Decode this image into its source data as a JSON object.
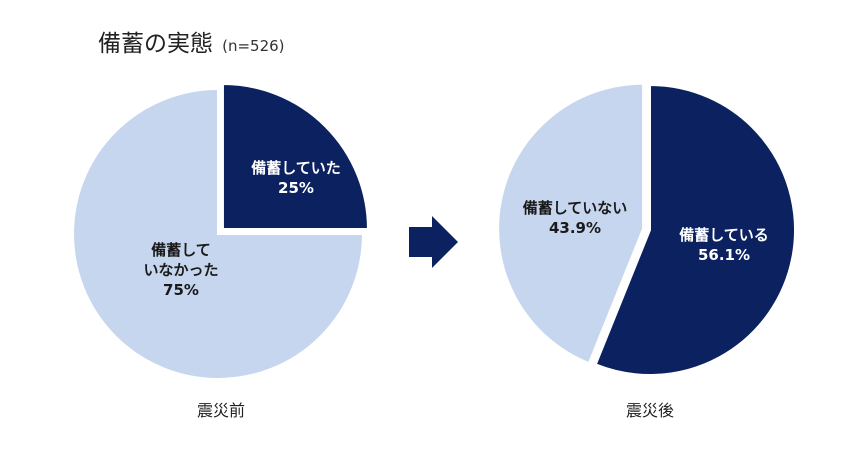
{
  "title": "備蓄の実態",
  "subtitle": "(n=526)",
  "colors": {
    "dark": "#0b2160",
    "light": "#c6d6ee",
    "arrow": "#0b2160"
  },
  "chart_data": [
    {
      "type": "pie",
      "caption": "震災前",
      "slices": [
        {
          "label_lines": [
            "備蓄していた"
          ],
          "value_label": "25%",
          "value": 25,
          "color": "#0b2160",
          "text_color": "#ffffff",
          "exploded": true
        },
        {
          "label_lines": [
            "備蓄して",
            "いなかった"
          ],
          "value_label": "75%",
          "value": 75,
          "color": "#c6d6ee",
          "text_color": "#1a1a1a",
          "exploded": false
        }
      ]
    },
    {
      "type": "pie",
      "caption": "震災後",
      "slices": [
        {
          "label_lines": [
            "備蓄している"
          ],
          "value_label": "56.1%",
          "value": 56.1,
          "color": "#0b2160",
          "text_color": "#ffffff",
          "exploded": false
        },
        {
          "label_lines": [
            "備蓄していない"
          ],
          "value_label": "43.9%",
          "value": 43.9,
          "color": "#c6d6ee",
          "text_color": "#1a1a1a",
          "exploded": true
        }
      ]
    }
  ]
}
